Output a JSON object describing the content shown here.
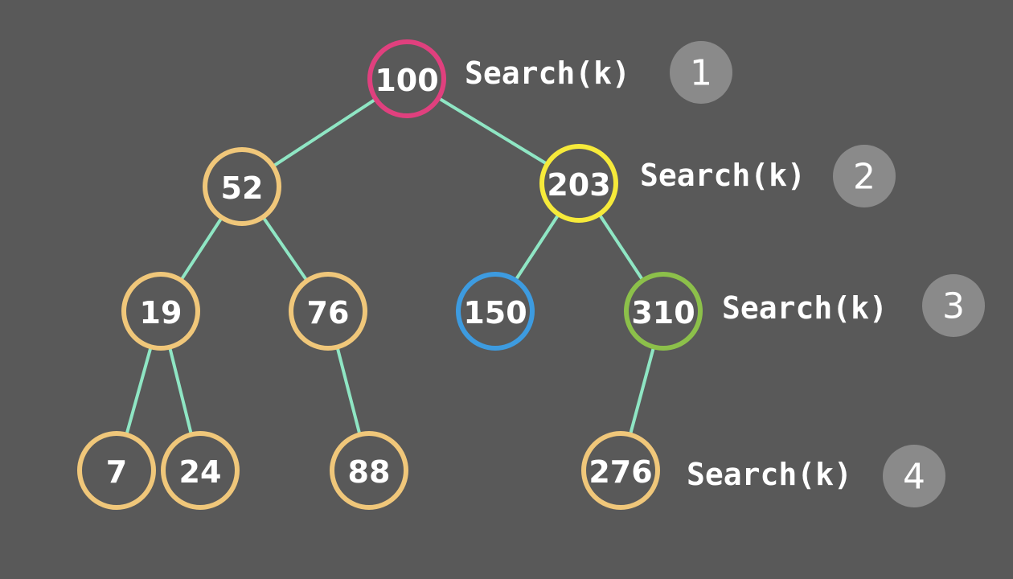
{
  "tree": {
    "nodes": [
      {
        "id": "n100",
        "label": "100",
        "color": "#e0407e"
      },
      {
        "id": "n52",
        "label": "52",
        "color": "#f0c77a"
      },
      {
        "id": "n203",
        "label": "203",
        "color": "#f6ea3a"
      },
      {
        "id": "n19",
        "label": "19",
        "color": "#f0c77a"
      },
      {
        "id": "n76",
        "label": "76",
        "color": "#f0c77a"
      },
      {
        "id": "n150",
        "label": "150",
        "color": "#3d9be0"
      },
      {
        "id": "n310",
        "label": "310",
        "color": "#8cc04a"
      },
      {
        "id": "n7",
        "label": "7",
        "color": "#f0c77a"
      },
      {
        "id": "n24",
        "label": "24",
        "color": "#f0c77a"
      },
      {
        "id": "n88",
        "label": "88",
        "color": "#f0c77a"
      },
      {
        "id": "n276",
        "label": "276",
        "color": "#f0c77a"
      }
    ],
    "edges": [
      [
        "n100",
        "n52"
      ],
      [
        "n100",
        "n203"
      ],
      [
        "n52",
        "n19"
      ],
      [
        "n52",
        "n76"
      ],
      [
        "n203",
        "n150"
      ],
      [
        "n203",
        "n310"
      ],
      [
        "n19",
        "n7"
      ],
      [
        "n19",
        "n24"
      ],
      [
        "n76",
        "n88"
      ],
      [
        "n310",
        "n276"
      ]
    ],
    "edge_color": "#8fe6c4"
  },
  "search_steps": [
    {
      "label": "Search(k)",
      "number": "1"
    },
    {
      "label": "Search(k)",
      "number": "2"
    },
    {
      "label": "Search(k)",
      "number": "3"
    },
    {
      "label": "Search(k)",
      "number": "4"
    }
  ],
  "colors": {
    "background": "#595959",
    "badge": "#8a8a8a",
    "text": "#ffffff"
  }
}
